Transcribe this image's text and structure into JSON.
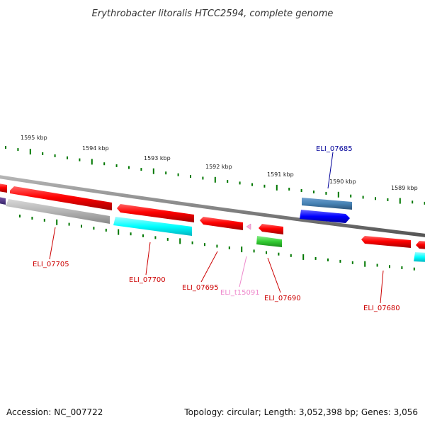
{
  "title": "Erythrobacter litoralis HTCC2594, complete genome",
  "scale_labels": [
    {
      "text": "1595 kbp",
      "kbp": 1595
    },
    {
      "text": "1594 kbp",
      "kbp": 1594
    },
    {
      "text": "1593 kbp",
      "kbp": 1593
    },
    {
      "text": "1592 kbp",
      "kbp": 1592
    },
    {
      "text": "1591 kbp",
      "kbp": 1591
    },
    {
      "text": "1590 kbp",
      "kbp": 1590
    },
    {
      "text": "1589 kbp",
      "kbp": 1589
    }
  ],
  "genes": [
    {
      "id": "ELI_07705",
      "label": "ELI_07705",
      "color": "#cc0000"
    },
    {
      "id": "ELI_07700",
      "label": "ELI_07700",
      "color": "#cc0000"
    },
    {
      "id": "ELI_07695",
      "label": "ELI_07695",
      "color": "#cc0000"
    },
    {
      "id": "ELI_t15091",
      "label": "ELI_t15091",
      "color": "#ee88cc"
    },
    {
      "id": "ELI_07690",
      "label": "ELI_07690",
      "color": "#cc0000"
    },
    {
      "id": "ELI_07685",
      "label": "ELI_07685",
      "color": "#000099"
    },
    {
      "id": "ELI_07680",
      "label": "ELI_07680",
      "color": "#cc0000"
    }
  ],
  "colors": {
    "cds": "#ff0000",
    "cog_grey": "#b0b0b0",
    "cog_cyan": "#00ffff",
    "cog_green": "#33cc33",
    "cog_steelblue": "#4682b4",
    "cog_blue": "#0000ff",
    "cog_purple": "#553388",
    "trna": "#ffaadd",
    "backbone": "#888888",
    "ticks": "#007700"
  },
  "footer": {
    "accession": "Accession: NC_007722",
    "summary": "Topology: circular; Length: 3,052,398 bp; Genes: 3,056"
  }
}
